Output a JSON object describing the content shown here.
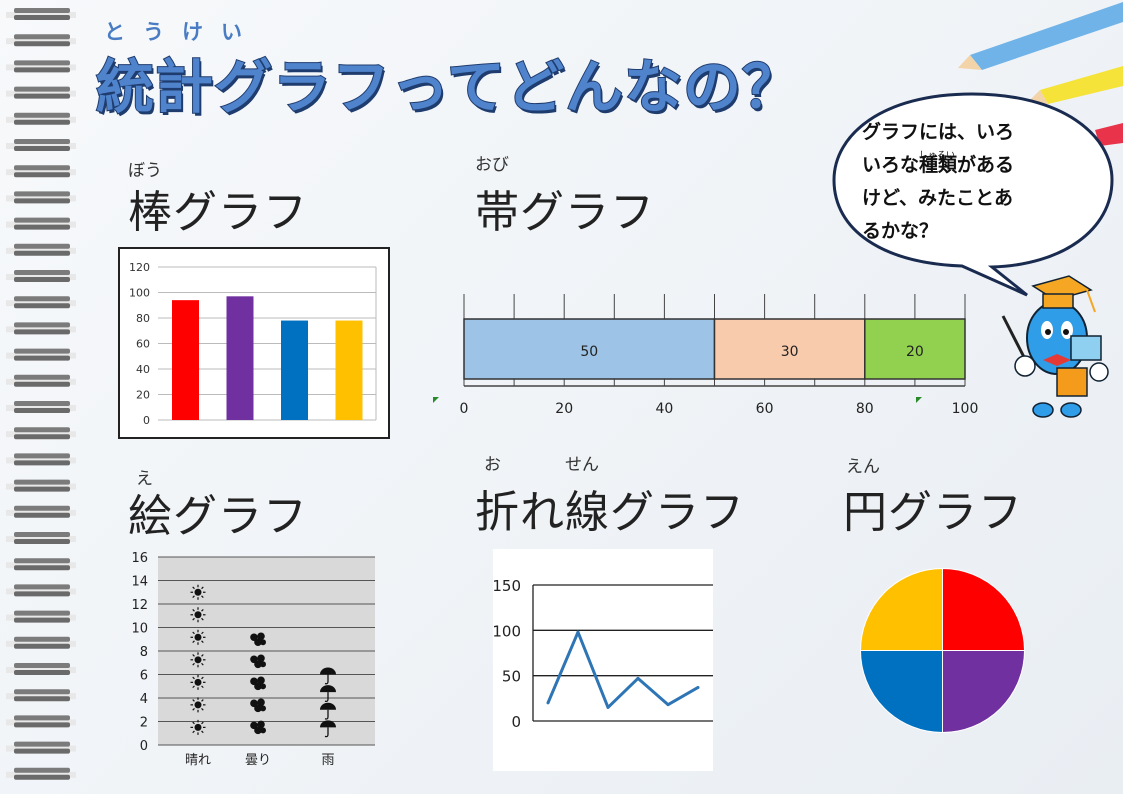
{
  "title": {
    "ruby": [
      "と",
      "う",
      "け",
      "い"
    ],
    "text": "統計グラフってどんなの？"
  },
  "bubble": {
    "line1": "グラフには、いろ",
    "line2_pre": "いろな",
    "line2_ruby_word": "種類",
    "line2_ruby": "しゅるい",
    "line2_post": "がある",
    "line3": "けど、みたことあ",
    "line4": "るかな？"
  },
  "sections": {
    "bar": {
      "ruby": "ぼう",
      "heading": "棒グラフ"
    },
    "band": {
      "ruby": "おび",
      "heading": "帯グラフ"
    },
    "picto": {
      "ruby": "え",
      "heading": "絵グラフ"
    },
    "line": {
      "ruby1": "お",
      "ruby2": "せん",
      "heading": "折れ線グラフ"
    },
    "pie": {
      "ruby": "えん",
      "heading": "円グラフ"
    }
  },
  "colors": {
    "red": "#ff0000",
    "purple": "#7030a0",
    "blue": "#0070c0",
    "yellow": "#ffc000",
    "band1": "#9dc3e6",
    "band2": "#f8cbad",
    "band3": "#92d050",
    "line": "#2e75b6"
  },
  "icons": {
    "pencils": "pencil-icon",
    "mascot": "mascot-character-icon",
    "spiral": "spiral-binding-icon"
  },
  "chart_data": [
    {
      "type": "bar",
      "categories": [
        "",
        "",
        "",
        ""
      ],
      "values": [
        94,
        97,
        78,
        78
      ],
      "colors": [
        "#ff0000",
        "#7030a0",
        "#0070c0",
        "#ffc000"
      ],
      "yticks": [
        "0",
        "20",
        "40",
        "60",
        "80",
        "100",
        "120"
      ],
      "ylim": [
        0,
        120
      ],
      "grid": true
    },
    {
      "type": "bar",
      "stacked": true,
      "segments": [
        {
          "value": 50,
          "label": "50",
          "color": "#9dc3e6"
        },
        {
          "value": 30,
          "label": "30",
          "color": "#f8cbad"
        },
        {
          "value": 20,
          "label": "20",
          "color": "#92d050"
        }
      ],
      "xticks": [
        "0",
        "20",
        "40",
        "60",
        "80",
        "100"
      ],
      "xlim": [
        0,
        100
      ]
    },
    {
      "type": "bar",
      "pictograph": true,
      "categories": [
        "晴れ",
        "曇り",
        "雨"
      ],
      "values": [
        13,
        9,
        6
      ],
      "symbols": [
        "sun-icon",
        "cloud-icon",
        "umbrella-icon"
      ],
      "yticks": [
        "0",
        "2",
        "4",
        "6",
        "8",
        "10",
        "12",
        "14",
        "16"
      ],
      "ylim": [
        0,
        16
      ]
    },
    {
      "type": "line",
      "values": [
        20,
        98,
        15,
        47,
        18,
        37
      ],
      "yticks": [
        "0",
        "50",
        "100",
        "150"
      ],
      "ylim": [
        0,
        150
      ],
      "grid": true
    },
    {
      "type": "pie",
      "values": [
        25,
        25,
        25,
        25
      ],
      "colors": [
        "#ff0000",
        "#7030a0",
        "#0070c0",
        "#ffc000"
      ]
    }
  ]
}
